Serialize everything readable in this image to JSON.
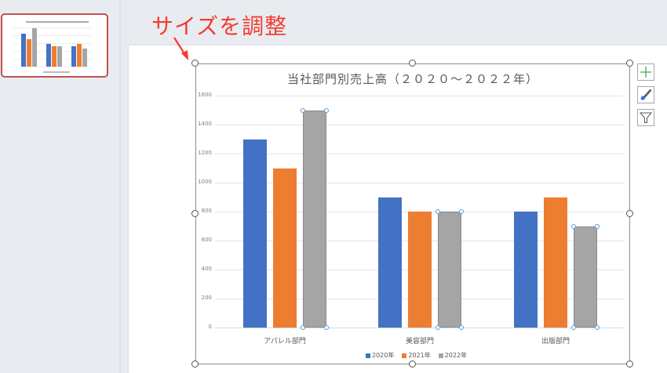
{
  "annotation": {
    "text": "サイズを調整",
    "color": "#f53b30"
  },
  "thumbnail": {
    "selected": true,
    "border_color": "#c0504d"
  },
  "chart_tools": [
    {
      "name": "chart-elements",
      "icon": "plus-icon"
    },
    {
      "name": "chart-styles",
      "icon": "paintbrush-icon"
    },
    {
      "name": "chart-filters",
      "icon": "funnel-icon"
    }
  ],
  "chart_data": {
    "type": "bar",
    "title": "当社部門別売上高（２０２０～２０２２年）",
    "categories": [
      "アパレル部門",
      "美容部門",
      "出版部門"
    ],
    "series": [
      {
        "name": "2020年",
        "color": "#4472c4",
        "values": [
          1300,
          900,
          800
        ]
      },
      {
        "name": "2021年",
        "color": "#ed7d31",
        "values": [
          1100,
          800,
          900
        ]
      },
      {
        "name": "2022年",
        "color": "#a5a5a5",
        "values": [
          1500,
          800,
          700
        ]
      }
    ],
    "yticks": [
      "1600",
      "1400",
      "1200",
      "1000",
      "800",
      "600",
      "400",
      "200",
      "0"
    ],
    "ylim": [
      0,
      1600
    ],
    "xlabel": "",
    "ylabel": "",
    "grid": true,
    "legend_position": "bottom",
    "selected_series": "2022年"
  }
}
